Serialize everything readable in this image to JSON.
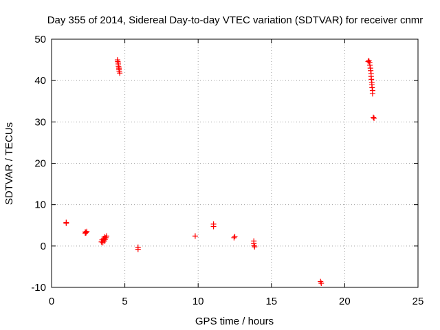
{
  "chart_data": {
    "type": "scatter",
    "title": "Day 355 of 2014, Sidereal Day-to-day VTEC variation (SDTVAR) for receiver cnmr",
    "xlabel": "GPS time / hours",
    "ylabel": "SDTVAR / TECUs",
    "xlim": [
      0,
      25
    ],
    "ylim": [
      -10,
      50
    ],
    "xticks": [
      0,
      5,
      10,
      15,
      20,
      25
    ],
    "yticks": [
      -10,
      0,
      10,
      20,
      30,
      40,
      50
    ],
    "grid": true,
    "marker": "plus",
    "color": "#ff0000",
    "series": [
      {
        "name": "SDTVAR",
        "points": [
          [
            1.0,
            5.5
          ],
          [
            1.0,
            5.7
          ],
          [
            2.3,
            3.1
          ],
          [
            2.3,
            3.4
          ],
          [
            2.35,
            3.2
          ],
          [
            2.4,
            3.5
          ],
          [
            3.4,
            1.0
          ],
          [
            3.45,
            1.5
          ],
          [
            3.5,
            0.8
          ],
          [
            3.55,
            1.8
          ],
          [
            3.6,
            1.2
          ],
          [
            3.6,
            2.2
          ],
          [
            3.65,
            1.6
          ],
          [
            3.7,
            2.0
          ],
          [
            3.75,
            2.4
          ],
          [
            4.5,
            45.0
          ],
          [
            4.52,
            44.6
          ],
          [
            4.55,
            44.2
          ],
          [
            4.55,
            43.8
          ],
          [
            4.57,
            43.4
          ],
          [
            4.6,
            43.0
          ],
          [
            4.6,
            42.6
          ],
          [
            4.62,
            42.2
          ],
          [
            4.65,
            41.8
          ],
          [
            5.9,
            -0.3
          ],
          [
            5.9,
            -0.8
          ],
          [
            9.8,
            2.4
          ],
          [
            11.05,
            5.3
          ],
          [
            11.05,
            4.7
          ],
          [
            12.45,
            2.0
          ],
          [
            12.5,
            2.3
          ],
          [
            13.8,
            1.2
          ],
          [
            13.8,
            0.6
          ],
          [
            13.82,
            0.1
          ],
          [
            13.85,
            -0.2
          ],
          [
            18.35,
            -8.6
          ],
          [
            18.4,
            -9.0
          ],
          [
            21.6,
            44.6
          ],
          [
            21.65,
            44.8
          ],
          [
            21.7,
            44.4
          ],
          [
            21.72,
            43.7
          ],
          [
            21.75,
            43.0
          ],
          [
            21.77,
            42.4
          ],
          [
            21.8,
            41.7
          ],
          [
            21.8,
            41.0
          ],
          [
            21.82,
            40.3
          ],
          [
            21.85,
            39.6
          ],
          [
            21.85,
            39.0
          ],
          [
            21.87,
            38.3
          ],
          [
            21.9,
            37.6
          ],
          [
            21.9,
            36.8
          ],
          [
            21.95,
            31.1
          ],
          [
            22.0,
            30.9
          ]
        ]
      }
    ]
  }
}
